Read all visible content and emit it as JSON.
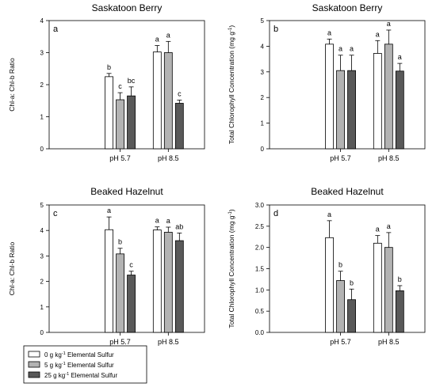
{
  "chart_data": [
    {
      "type": "bar",
      "panel": "a",
      "title": "Saskatoon Berry",
      "ylabel": "Chl-a: Chl-b Ratio",
      "categories": [
        "pH 5.7",
        "pH 8.5"
      ],
      "ylim": [
        0,
        4
      ],
      "yticks": [
        "0",
        "1",
        "2",
        "3",
        "4"
      ],
      "series": [
        {
          "values": [
            2.25,
            3.02
          ],
          "errors": [
            0.1,
            0.2
          ],
          "letters": [
            "b",
            "a"
          ]
        },
        {
          "values": [
            1.53,
            3.0
          ],
          "errors": [
            0.22,
            0.35
          ],
          "letters": [
            "c",
            "a"
          ]
        },
        {
          "values": [
            1.65,
            1.42
          ],
          "errors": [
            0.28,
            0.1
          ],
          "letters": [
            "bc",
            "c"
          ]
        }
      ]
    },
    {
      "type": "bar",
      "panel": "b",
      "title": "Saskatoon Berry",
      "ylabel": "Total Chlorophyll Concentration (mg g-1)",
      "categories": [
        "pH 5.7",
        "pH 8.5"
      ],
      "ylim": [
        0,
        5
      ],
      "yticks": [
        "0",
        "1",
        "2",
        "3",
        "4",
        "5"
      ],
      "series": [
        {
          "values": [
            4.08,
            3.72
          ],
          "errors": [
            0.2,
            0.5
          ],
          "letters": [
            "a",
            "a"
          ]
        },
        {
          "values": [
            3.05,
            4.08
          ],
          "errors": [
            0.6,
            0.55
          ],
          "letters": [
            "a",
            "a"
          ]
        },
        {
          "values": [
            3.05,
            3.03
          ],
          "errors": [
            0.6,
            0.3
          ],
          "letters": [
            "a",
            "a"
          ]
        }
      ]
    },
    {
      "type": "bar",
      "panel": "c",
      "title": "Beaked Hazelnut",
      "ylabel": "Chl-a: Chl-b Ratio",
      "categories": [
        "pH 5.7",
        "pH 8.5"
      ],
      "ylim": [
        0,
        5
      ],
      "yticks": [
        "0",
        "1",
        "2",
        "3",
        "4",
        "5"
      ],
      "series": [
        {
          "values": [
            4.03,
            4.02
          ],
          "errors": [
            0.5,
            0.12
          ],
          "letters": [
            "a",
            "a"
          ]
        },
        {
          "values": [
            3.08,
            3.93
          ],
          "errors": [
            0.22,
            0.2
          ],
          "letters": [
            "b",
            "a"
          ]
        },
        {
          "values": [
            2.25,
            3.6
          ],
          "errors": [
            0.15,
            0.3
          ],
          "letters": [
            "c",
            "ab"
          ]
        }
      ]
    },
    {
      "type": "bar",
      "panel": "d",
      "title": "Beaked Hazelnut",
      "ylabel": "Total Chlorophyll Concentration (mg g-1)",
      "categories": [
        "pH 5.7",
        "pH 8.5"
      ],
      "ylim": [
        0,
        3.0
      ],
      "yticks": [
        "0.0",
        "0.5",
        "1.0",
        "1.5",
        "2.0",
        "2.5",
        "3.0"
      ],
      "series": [
        {
          "values": [
            2.23,
            2.1
          ],
          "errors": [
            0.4,
            0.18
          ],
          "letters": [
            "a",
            "a"
          ]
        },
        {
          "values": [
            1.22,
            2.0
          ],
          "errors": [
            0.22,
            0.35
          ],
          "letters": [
            "b",
            "a"
          ]
        },
        {
          "values": [
            0.77,
            0.98
          ],
          "errors": [
            0.25,
            0.12
          ],
          "letters": [
            "b",
            "b"
          ]
        }
      ]
    }
  ],
  "legend": {
    "items": [
      {
        "text": "0 g kg-1 Elemental Sulfur",
        "color": "#ffffff"
      },
      {
        "text": "5 g kg-1 Elemental Sulfur",
        "color": "#b3b3b3"
      },
      {
        "text": "25 g kg-1 Elemental Sulfur",
        "color": "#595959"
      }
    ]
  },
  "colors": {
    "series": [
      "#ffffff",
      "#b3b3b3",
      "#595959"
    ],
    "stroke": "#000000"
  }
}
